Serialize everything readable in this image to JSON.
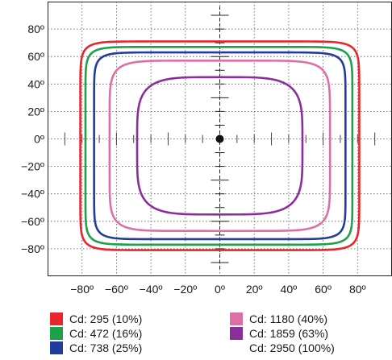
{
  "chart_data": {
    "type": "isocandela",
    "xlim": [
      -100,
      100
    ],
    "ylim": [
      -100,
      100
    ],
    "x_ticks": [
      -80,
      -60,
      -40,
      -20,
      0,
      20,
      40,
      60,
      80
    ],
    "y_ticks": [
      80,
      60,
      40,
      20,
      0,
      -20,
      -40,
      -60,
      -80
    ],
    "x_tick_labels": [
      "−80º",
      "−60º",
      "−40º",
      "−20º",
      "0º",
      "20º",
      "40º",
      "60º",
      "80º"
    ],
    "y_tick_labels": [
      "80º",
      "60º",
      "40º",
      "20º",
      "0º",
      "−20º",
      "−40º",
      "−60º",
      "−80º"
    ],
    "grid": true,
    "center_point": [
      0,
      0
    ],
    "series": [
      {
        "name": "Cd: 295 (10%)",
        "color": "#e8262d",
        "x_extent": [
          -81,
          81
        ],
        "y_extent": [
          -81,
          71
        ],
        "squareness": 0.16
      },
      {
        "name": "Cd: 472 (16%)",
        "color": "#1fa149",
        "x_extent": [
          -78,
          77
        ],
        "y_extent": [
          -77,
          67
        ],
        "squareness": 0.16
      },
      {
        "name": "Cd: 738 (25%)",
        "color": "#213c9c",
        "x_extent": [
          -73,
          73
        ],
        "y_extent": [
          -73,
          63
        ],
        "squareness": 0.17
      },
      {
        "name": "Cd: 1180 (40%)",
        "color": "#dd6fa4",
        "x_extent": [
          -64,
          64
        ],
        "y_extent": [
          -67,
          57
        ],
        "squareness": 0.26
      },
      {
        "name": "Cd: 1859 (63%)",
        "color": "#8b2e9b",
        "x_extent": [
          -48,
          48
        ],
        "y_extent": [
          -55,
          45
        ],
        "squareness": 0.45
      },
      {
        "name": "Cd: 2950 (100%)",
        "color": ""
      }
    ]
  }
}
